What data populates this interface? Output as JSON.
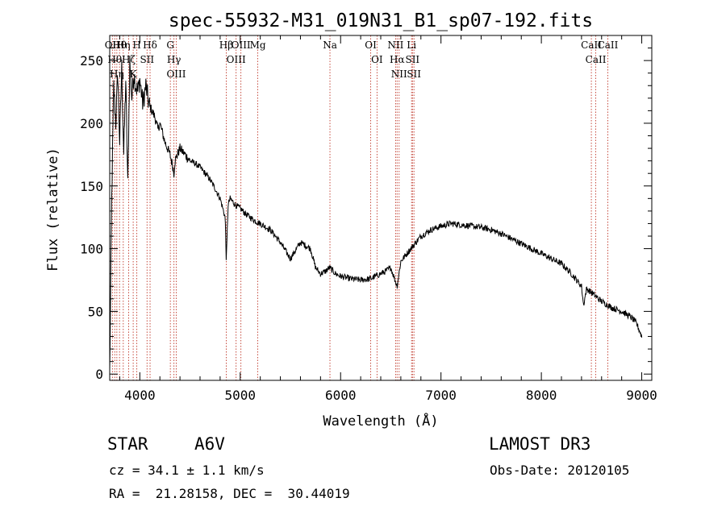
{
  "chart_data": {
    "type": "line",
    "title": "spec-55932-M31_019N31_B1_sp07-192.fits",
    "xlabel": "Wavelength (Å)",
    "ylabel": "Flux (relative)",
    "xlim": [
      3700,
      9100
    ],
    "ylim": [
      -5,
      270
    ],
    "x_ticks": [
      4000,
      5000,
      6000,
      7000,
      8000,
      9000
    ],
    "y_ticks": [
      0,
      50,
      100,
      150,
      200,
      250
    ],
    "grid": false,
    "series": [
      {
        "name": "flux",
        "x": [
          3700,
          3720,
          3740,
          3760,
          3780,
          3800,
          3820,
          3840,
          3860,
          3880,
          3900,
          3920,
          3940,
          3960,
          3980,
          4000,
          4030,
          4060,
          4090,
          4120,
          4150,
          4180,
          4200,
          4250,
          4300,
          4330,
          4340,
          4350,
          4400,
          4450,
          4500,
          4550,
          4600,
          4650,
          4700,
          4750,
          4800,
          4850,
          4861,
          4880,
          4900,
          4950,
          5000,
          5050,
          5100,
          5150,
          5200,
          5300,
          5400,
          5500,
          5600,
          5700,
          5750,
          5800,
          5850,
          5890,
          5950,
          6000,
          6100,
          6200,
          6300,
          6400,
          6450,
          6500,
          6563,
          6600,
          6650,
          6700,
          6750,
          6800,
          6900,
          7000,
          7100,
          7200,
          7300,
          7400,
          7500,
          7600,
          7700,
          7800,
          7900,
          8000,
          8100,
          8200,
          8300,
          8400,
          8420,
          8450,
          8500,
          8542,
          8600,
          8662,
          8700,
          8800,
          8900,
          8950,
          9000
        ],
        "y": [
          0,
          140,
          230,
          200,
          240,
          185,
          245,
          175,
          235,
          150,
          250,
          220,
          240,
          230,
          225,
          235,
          215,
          230,
          215,
          210,
          205,
          195,
          200,
          185,
          175,
          165,
          160,
          170,
          180,
          175,
          170,
          168,
          165,
          160,
          155,
          148,
          140,
          125,
          90,
          135,
          140,
          135,
          132,
          128,
          125,
          122,
          120,
          115,
          105,
          92,
          105,
          100,
          85,
          80,
          82,
          85,
          80,
          78,
          76,
          75,
          76,
          80,
          82,
          85,
          70,
          90,
          95,
          100,
          105,
          110,
          115,
          118,
          120,
          119,
          118,
          117,
          115,
          112,
          108,
          104,
          100,
          96,
          92,
          88,
          80,
          70,
          55,
          68,
          65,
          62,
          58,
          55,
          53,
          50,
          45,
          40,
          30
        ]
      }
    ],
    "lines": [
      {
        "wl": 3727,
        "label": "OII"
      },
      {
        "wl": 3750,
        "label": "Hθ"
      },
      {
        "wl": 3771,
        "label": "Hη"
      },
      {
        "wl": 3798,
        "label": "Hθ"
      },
      {
        "wl": 3835,
        "label": "Hη"
      },
      {
        "wl": 3889,
        "label": "Hζ"
      },
      {
        "wl": 3934,
        "label": "K"
      },
      {
        "wl": 3970,
        "label": "H"
      },
      {
        "wl": 4072,
        "label": "SII"
      },
      {
        "wl": 4102,
        "label": "Hδ"
      },
      {
        "wl": 4304,
        "label": "G"
      },
      {
        "wl": 4340,
        "label": "Hγ"
      },
      {
        "wl": 4363,
        "label": "OIII"
      },
      {
        "wl": 4861,
        "label": "Hβ"
      },
      {
        "wl": 4959,
        "label": "OIII"
      },
      {
        "wl": 5007,
        "label": "OIII"
      },
      {
        "wl": 5175,
        "label": "Mg"
      },
      {
        "wl": 5894,
        "label": "Na"
      },
      {
        "wl": 6300,
        "label": "OI"
      },
      {
        "wl": 6363,
        "label": "OI"
      },
      {
        "wl": 6548,
        "label": "NII"
      },
      {
        "wl": 6563,
        "label": "Hα"
      },
      {
        "wl": 6583,
        "label": "NII"
      },
      {
        "wl": 6707,
        "label": "Li"
      },
      {
        "wl": 6716,
        "label": "SII"
      },
      {
        "wl": 6731,
        "label": "SII"
      },
      {
        "wl": 8498,
        "label": "CaII"
      },
      {
        "wl": 8542,
        "label": "CaII"
      },
      {
        "wl": 8662,
        "label": "CaII"
      }
    ],
    "colors": {
      "spectrum": "#000000",
      "marker": "#c0392b",
      "axes": "#000000"
    }
  },
  "info": {
    "class": "STAR",
    "subclass": "A6V",
    "survey": "LAMOST DR3",
    "cz": "cz = 34.1 ± 1.1 km/s",
    "obs_date": "Obs-Date: 20120105",
    "radec": "RA =  21.28158, DEC =  30.44019"
  }
}
